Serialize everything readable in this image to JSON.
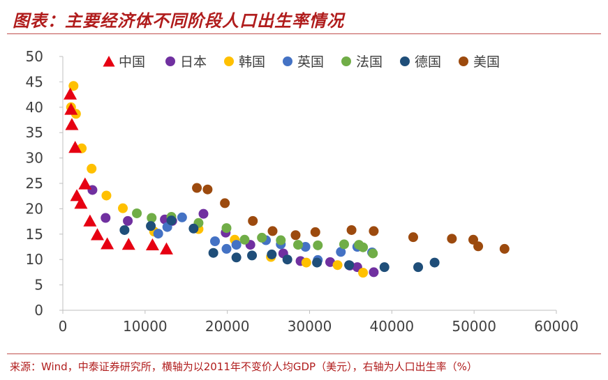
{
  "title": "图表：主要经济体不同阶段人口出生率情况",
  "source": "来源：Wind，中泰证券研究所，横轴为以2011年不变价人均GDP（美元），右轴为人口出生率（%）",
  "chart_data": {
    "type": "scatter",
    "xlim": [
      0,
      60000
    ],
    "ylim": [
      0,
      50
    ],
    "xticks": [
      0,
      10000,
      20000,
      30000,
      40000,
      50000,
      60000
    ],
    "yticks": [
      0,
      5,
      10,
      15,
      20,
      25,
      30,
      35,
      40,
      45,
      50
    ],
    "legend_position": "top",
    "grid": false,
    "series": [
      {
        "name": "中国",
        "marker": "triangle",
        "color": "#e60012",
        "points": [
          [
            900,
            42.5
          ],
          [
            1000,
            39.5
          ],
          [
            1100,
            36.5
          ],
          [
            1500,
            32
          ],
          [
            1700,
            22.5
          ],
          [
            2200,
            21
          ],
          [
            2700,
            24.8
          ],
          [
            3300,
            17.5
          ],
          [
            4200,
            14.8
          ],
          [
            5400,
            13
          ],
          [
            8000,
            12.9
          ],
          [
            10900,
            12.8
          ],
          [
            12600,
            12
          ]
        ]
      },
      {
        "name": "日本",
        "marker": "circle",
        "color": "#7030a0",
        "points": [
          [
            3600,
            23.7
          ],
          [
            5200,
            18.2
          ],
          [
            7900,
            17.6
          ],
          [
            12400,
            17.9
          ],
          [
            13300,
            17.6
          ],
          [
            17100,
            19
          ],
          [
            19800,
            15.3
          ],
          [
            22800,
            12.9
          ],
          [
            26800,
            11.2
          ],
          [
            28900,
            9.7
          ],
          [
            32500,
            9.5
          ],
          [
            34900,
            8.8
          ],
          [
            35800,
            8.5
          ],
          [
            37800,
            7.5
          ]
        ]
      },
      {
        "name": "韩国",
        "marker": "circle",
        "color": "#ffc000",
        "points": [
          [
            1000,
            40
          ],
          [
            1300,
            44.2
          ],
          [
            1600,
            38.7
          ],
          [
            2300,
            31.9
          ],
          [
            3500,
            27.9
          ],
          [
            5300,
            22.6
          ],
          [
            7300,
            20.1
          ],
          [
            11100,
            15.5
          ],
          [
            16500,
            16
          ],
          [
            20900,
            13.9
          ],
          [
            25300,
            10.5
          ],
          [
            29600,
            9.4
          ],
          [
            33400,
            8.9
          ],
          [
            36500,
            7.4
          ]
        ]
      },
      {
        "name": "英国",
        "marker": "circle",
        "color": "#4472c4",
        "points": [
          [
            11600,
            15.1
          ],
          [
            12700,
            16.4
          ],
          [
            14500,
            18.3
          ],
          [
            18500,
            13.6
          ],
          [
            19900,
            12.1
          ],
          [
            21100,
            12.9
          ],
          [
            24700,
            13.8
          ],
          [
            26500,
            13
          ],
          [
            29500,
            12.5
          ],
          [
            31000,
            9.9
          ],
          [
            33800,
            11.5
          ],
          [
            35800,
            12.5
          ],
          [
            37600,
            11.4
          ]
        ]
      },
      {
        "name": "法国",
        "marker": "circle",
        "color": "#70ad47",
        "points": [
          [
            9000,
            19.1
          ],
          [
            10800,
            18.2
          ],
          [
            13200,
            18.4
          ],
          [
            16500,
            17.2
          ],
          [
            19900,
            16.2
          ],
          [
            22100,
            13.9
          ],
          [
            24200,
            14.3
          ],
          [
            26500,
            13.8
          ],
          [
            28600,
            12.9
          ],
          [
            31000,
            12.8
          ],
          [
            34200,
            13
          ],
          [
            36000,
            12.9
          ],
          [
            36500,
            12.4
          ],
          [
            37700,
            11.2
          ]
        ]
      },
      {
        "name": "德国",
        "marker": "circle",
        "color": "#1f4e79",
        "points": [
          [
            7500,
            15.8
          ],
          [
            10700,
            16.6
          ],
          [
            13200,
            17.7
          ],
          [
            15900,
            16.1
          ],
          [
            18300,
            11.3
          ],
          [
            21100,
            10.4
          ],
          [
            23000,
            10.8
          ],
          [
            25400,
            11
          ],
          [
            27300,
            10
          ],
          [
            30900,
            9.4
          ],
          [
            34800,
            8.9
          ],
          [
            39100,
            8.5
          ],
          [
            43200,
            8.5
          ],
          [
            45200,
            9.4
          ]
        ]
      },
      {
        "name": "美国",
        "marker": "circle",
        "color": "#9c4a0e",
        "points": [
          [
            16300,
            24.1
          ],
          [
            17600,
            23.8
          ],
          [
            19700,
            21.1
          ],
          [
            23100,
            17.6
          ],
          [
            25500,
            15.6
          ],
          [
            28300,
            14.8
          ],
          [
            30700,
            15.4
          ],
          [
            35100,
            15.8
          ],
          [
            37800,
            15.6
          ],
          [
            42600,
            14.4
          ],
          [
            47300,
            14.1
          ],
          [
            49900,
            13.9
          ],
          [
            50500,
            12.6
          ],
          [
            53700,
            12.1
          ]
        ]
      }
    ]
  }
}
